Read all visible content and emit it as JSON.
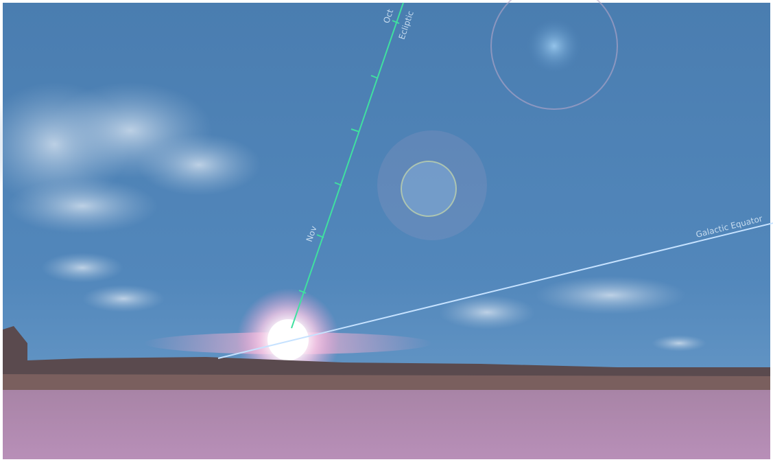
{
  "sky_labels": {
    "oct": "Oct",
    "ecliptic": "Ecliptic",
    "nov": "Nov",
    "galactic_equator": "Galactic Equator"
  }
}
